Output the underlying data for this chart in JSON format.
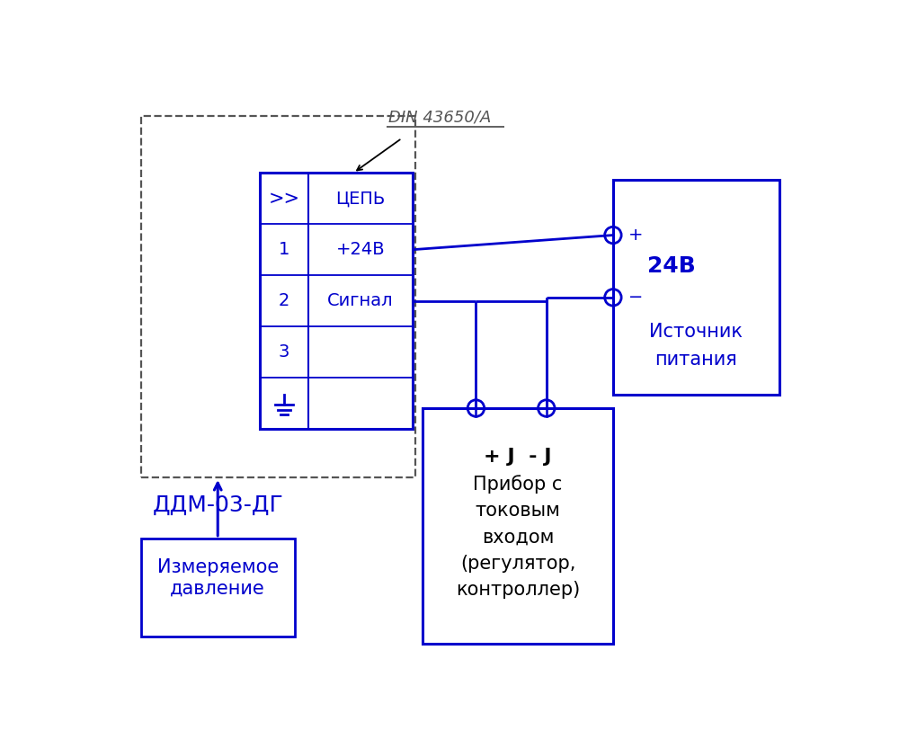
{
  "bg_color": "#ffffff",
  "line_color": "#0000cc",
  "dash_color": "#555555",
  "black_color": "#000000",
  "figsize": [
    10.0,
    8.32
  ],
  "dpi": 100,
  "din_label": "DIN 43650/A",
  "sensor_label": "ДДМ-03-ДГ",
  "pressure_label": "Измеряемое\nдавление",
  "source_label1": "Источник",
  "source_label2": "питания",
  "voltage_label": "24В",
  "device_line1": "+ J  - J",
  "device_line2": "Прибор с",
  "device_line3": "токовым",
  "device_line4": "входом",
  "device_line5": "(регулятор,",
  "device_line6": "контроллер)",
  "table_col1": [
    ">>",
    "1",
    "2",
    "3"
  ],
  "table_col2": [
    "ЦЕПЬ",
    "+24В",
    "Сигнал",
    ""
  ]
}
